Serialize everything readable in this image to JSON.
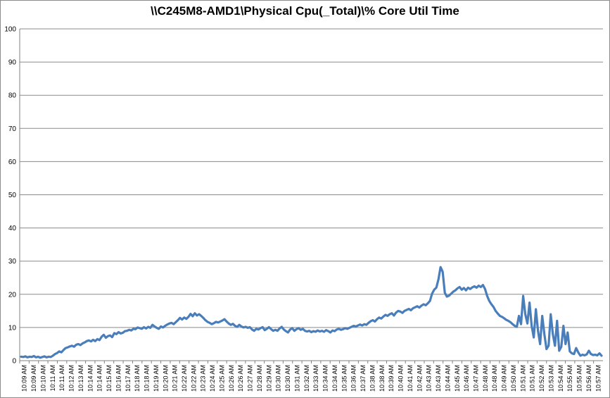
{
  "chart_data": {
    "type": "line",
    "title": "\\\\C245M8-AMD1\\Physical Cpu(_Total)\\% Core Util Time",
    "xlabel": "",
    "ylabel": "",
    "ylim": [
      0,
      100
    ],
    "yticks": [
      0,
      10,
      20,
      30,
      40,
      50,
      60,
      70,
      80,
      90,
      100
    ],
    "grid": true,
    "legend": "none",
    "line_color": "#4a7ebb",
    "x_tick_labels": [
      "10:09 AM",
      "10:09 AM",
      "10:10 AM",
      "10:11 AM",
      "10:11 AM",
      "10:12 AM",
      "10:13 AM",
      "10:14 AM",
      "10:14 AM",
      "10:15 AM",
      "10:16 AM",
      "10:17 AM",
      "10:18 AM",
      "10:18 AM",
      "10:19 AM",
      "10:20 AM",
      "10:21 AM",
      "10:22 AM",
      "10:22 AM",
      "10:23 AM",
      "10:24 AM",
      "10:25 AM",
      "10:26 AM",
      "10:26 AM",
      "10:27 AM",
      "10:28 AM",
      "10:29 AM",
      "10:30 AM",
      "10:30 AM",
      "10:31 AM",
      "10:32 AM",
      "10:33 AM",
      "10:34 AM",
      "10:34 AM",
      "10:35 AM",
      "10:36 AM",
      "10:37 AM",
      "10:38 AM",
      "10:38 AM",
      "10:39 AM",
      "10:40 AM",
      "10:41 AM",
      "10:42 AM",
      "10:43 AM",
      "10:43 AM",
      "10:44 AM",
      "10:45 AM",
      "10:46 AM",
      "10:47 AM",
      "10:48 AM",
      "10:48 AM",
      "10:49 AM",
      "10:50 AM",
      "10:51 AM",
      "10:51 AM",
      "10:52 AM",
      "10:53 AM",
      "10:54 AM",
      "10:55 AM",
      "10:55 AM",
      "10:56 AM",
      "10:57 AM"
    ],
    "values": [
      1.2,
      1.1,
      1.3,
      1.0,
      1.2,
      1.1,
      1.4,
      1.0,
      1.2,
      0.9,
      1.1,
      1.3,
      1.0,
      1.2,
      1.1,
      1.5,
      2.0,
      2.3,
      2.8,
      2.5,
      3.2,
      3.8,
      4.0,
      4.3,
      4.5,
      4.2,
      4.8,
      5.0,
      4.7,
      5.2,
      5.5,
      5.9,
      6.1,
      5.8,
      6.3,
      5.9,
      6.5,
      6.2,
      7.2,
      7.8,
      6.9,
      7.4,
      7.6,
      7.1,
      8.3,
      8.0,
      8.6,
      8.2,
      8.4,
      8.9,
      9.0,
      9.3,
      9.1,
      9.6,
      9.5,
      10.0,
      9.8,
      9.6,
      10.1,
      9.7,
      10.2,
      9.9,
      10.8,
      10.3,
      9.9,
      9.6,
      10.3,
      10.0,
      10.5,
      10.9,
      11.2,
      11.4,
      11.0,
      11.6,
      12.2,
      12.9,
      12.4,
      13.0,
      12.6,
      13.2,
      14.1,
      13.4,
      14.3,
      13.6,
      14.0,
      13.5,
      12.9,
      12.2,
      11.7,
      11.4,
      11.0,
      11.3,
      11.7,
      11.5,
      11.8,
      12.1,
      12.5,
      11.8,
      11.2,
      10.8,
      11.1,
      10.5,
      10.2,
      10.8,
      10.3,
      10.0,
      10.2,
      9.9,
      10.1,
      9.4,
      9.0,
      9.6,
      9.4,
      9.8,
      10.1,
      9.2,
      9.6,
      10.1,
      9.5,
      9.0,
      9.3,
      9.0,
      9.7,
      10.2,
      9.4,
      8.9,
      8.5,
      9.4,
      9.8,
      9.0,
      9.5,
      9.8,
      9.3,
      9.6,
      9.0,
      8.8,
      9.0,
      8.6,
      8.9,
      8.7,
      9.1,
      8.8,
      9.0,
      8.7,
      9.2,
      8.9,
      8.5,
      9.1,
      8.9,
      9.4,
      9.6,
      9.3,
      9.5,
      9.8,
      9.6,
      9.9,
      10.2,
      10.5,
      10.3,
      10.6,
      10.9,
      10.6,
      11.0,
      10.8,
      11.4,
      11.9,
      12.2,
      11.8,
      12.5,
      13.0,
      12.7,
      13.3,
      13.8,
      13.5,
      14.0,
      14.3,
      13.6,
      14.5,
      15.0,
      14.8,
      14.4,
      15.0,
      15.3,
      15.6,
      15.2,
      15.8,
      16.1,
      16.4,
      16.0,
      16.6,
      17.0,
      16.7,
      17.3,
      18.0,
      20.2,
      21.4,
      22.0,
      24.5,
      28.2,
      26.8,
      20.5,
      19.3,
      19.6,
      20.2,
      20.8,
      21.2,
      21.8,
      22.2,
      21.4,
      21.9,
      21.2,
      22.0,
      21.6,
      22.1,
      22.4,
      22.0,
      22.6,
      22.2,
      22.8,
      21.6,
      19.5,
      18.0,
      17.0,
      16.2,
      15.0,
      14.2,
      13.5,
      13.2,
      12.8,
      12.3,
      12.0,
      11.6,
      11.0,
      10.5,
      10.2,
      13.5,
      11.0,
      19.5,
      14.0,
      11.2,
      17.5,
      10.5,
      7.0,
      15.5,
      9.0,
      5.0,
      13.5,
      8.0,
      3.5,
      4.5,
      14.0,
      8.0,
      4.5,
      12.0,
      3.0,
      4.2,
      10.5,
      5.0,
      8.5,
      2.8,
      2.2,
      2.0,
      3.8,
      2.5,
      1.5,
      1.8,
      1.6,
      1.9,
      3.0,
      2.0,
      1.7,
      1.8,
      1.6,
      2.2,
      1.5
    ]
  }
}
